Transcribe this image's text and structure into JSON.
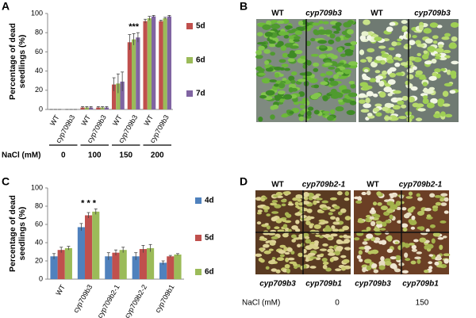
{
  "chart_data": [
    {
      "type": "bar",
      "ylabel": [
        "Percentage of dead",
        "seedlings (%)"
      ],
      "categories": [
        "WT",
        "cyp709b3",
        "WT",
        "cyp709b3",
        "WT",
        "cyp709b3",
        "WT",
        "cyp709b3"
      ],
      "series": [
        {
          "name": "5d",
          "color": "#c0504d",
          "values": [
            0,
            0,
            2,
            2,
            26,
            70,
            92,
            92
          ],
          "errors": [
            0,
            0,
            1,
            1,
            7,
            8,
            2,
            1
          ]
        },
        {
          "name": "6d",
          "color": "#9bbb59",
          "values": [
            0,
            0,
            2,
            2,
            27,
            73,
            95,
            95
          ],
          "errors": [
            0,
            0,
            1,
            1,
            10,
            6,
            2,
            1
          ]
        },
        {
          "name": "7d",
          "color": "#8064a2",
          "values": [
            0,
            0,
            2,
            2,
            29,
            75,
            97,
            97
          ],
          "errors": [
            0,
            0,
            1,
            1,
            10,
            5,
            1,
            1
          ]
        }
      ],
      "ylim": [
        0,
        100
      ],
      "yticks": [
        0,
        20,
        40,
        60,
        80,
        100
      ],
      "annotation": "***",
      "group_label": "NaCl (mM)",
      "groups": [
        "0",
        "100",
        "150",
        "200"
      ]
    },
    {
      "type": "bar",
      "ylabel": [
        "Percentage of dead",
        "seedlings (%)"
      ],
      "categories": [
        "WT",
        "cyp709b3",
        "cyp709b2-1",
        "cyp709b2-2",
        "cyp709b1"
      ],
      "series": [
        {
          "name": "4d",
          "color": "#4f81bd",
          "values": [
            25,
            57,
            25,
            25,
            18
          ],
          "errors": [
            3,
            4,
            4,
            4,
            2
          ]
        },
        {
          "name": "5d",
          "color": "#c0504d",
          "values": [
            32,
            70,
            29,
            33,
            25
          ],
          "errors": [
            3,
            3,
            3,
            4,
            1
          ]
        },
        {
          "name": "6d",
          "color": "#9bbb59",
          "values": [
            34,
            74,
            32,
            34,
            27
          ],
          "errors": [
            2,
            3,
            3,
            4,
            1
          ]
        }
      ],
      "ylim": [
        0,
        100
      ],
      "yticks": [
        0,
        20,
        40,
        60,
        80,
        100
      ],
      "annotation": "* * *"
    }
  ],
  "panels": [
    "A",
    "B",
    "C",
    "D"
  ],
  "photo_b": {
    "labels": [
      "WT",
      "cyp709b3",
      "WT",
      "cyp709b3"
    ]
  },
  "photo_d": {
    "top_labels": [
      "WT",
      "cyp709b2-1",
      "WT",
      "cyp709b2-1"
    ],
    "bottom_labels": [
      "cyp709b3",
      "cyp709b1",
      "cyp709b3",
      "cyp709b1"
    ],
    "salt_label": "NaCl (mM)",
    "salt_levels": [
      "0",
      "150"
    ]
  }
}
